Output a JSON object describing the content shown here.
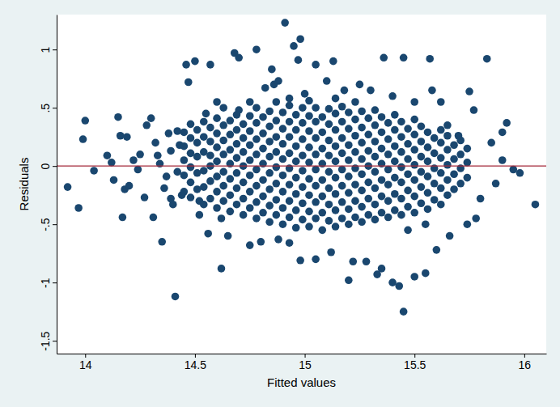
{
  "chart_data": {
    "type": "scatter",
    "xlabel": "Fitted values",
    "ylabel": "Residuals",
    "marker": "circle",
    "color": "#1a476f",
    "grid": false,
    "hline": 0,
    "xlim": [
      13.87,
      16.1
    ],
    "xticks": [
      14,
      14.5,
      15,
      15.5,
      16
    ],
    "ylim": [
      -1.61,
      1.3
    ],
    "yticks": [
      {
        "value": -1.5,
        "label": "-1.5"
      },
      {
        "value": -1,
        "label": "-1"
      },
      {
        "value": -0.5,
        "label": "-.5"
      },
      0,
      {
        "value": 0.5,
        "label": ".5"
      },
      1
    ],
    "x": [
      13.92,
      13.97,
      13.99,
      14.0,
      14.04,
      14.1,
      14.12,
      14.13,
      14.15,
      14.16,
      14.17,
      14.19,
      14.18,
      14.2,
      14.22,
      14.24,
      14.25,
      14.27,
      14.28,
      14.3,
      14.31,
      14.32,
      14.34,
      14.35,
      14.37,
      14.38,
      14.4,
      14.41,
      14.43,
      14.44,
      14.46,
      14.47,
      14.5,
      14.52,
      14.55,
      14.56,
      14.57,
      14.62,
      14.68,
      14.7,
      14.78,
      14.82,
      14.85,
      14.91,
      14.95,
      14.97,
      14.98,
      15.05,
      15.13,
      15.36,
      15.45,
      15.57,
      15.75,
      15.83,
      15.77,
      15.9,
      15.92,
      15.95,
      15.98,
      16.05,
      15.9,
      15.87,
      15.85,
      15.8,
      15.78,
      15.74,
      15.7,
      15.66,
      15.6,
      15.55,
      15.5,
      15.45,
      15.43,
      15.4,
      15.35,
      15.33,
      15.28,
      15.22,
      15.2,
      15.12,
      15.05,
      14.98,
      14.93,
      14.88,
      14.8,
      14.75,
      14.65,
      15.65,
      15.62,
      15.58,
      15.5,
      15.4,
      15.3,
      15.25,
      15.18,
      15.1,
      15.0,
      14.93,
      14.88,
      14.86,
      14.75,
      14.7,
      14.63,
      14.6,
      14.52,
      14.62,
      15.55,
      15.47,
      14.33,
      14.36,
      14.39,
      14.42,
      14.42,
      14.39,
      14.45,
      14.45,
      14.45,
      14.45,
      14.45,
      14.48,
      14.48,
      14.48,
      14.48,
      14.48,
      14.48,
      14.51,
      14.51,
      14.51,
      14.51,
      14.51,
      14.54,
      14.54,
      14.54,
      14.54,
      14.54,
      14.54,
      14.57,
      14.57,
      14.57,
      14.57,
      14.57,
      14.57,
      14.6,
      14.6,
      14.6,
      14.6,
      14.6,
      14.6,
      14.6,
      14.63,
      14.63,
      14.63,
      14.63,
      14.63,
      14.63,
      14.66,
      14.66,
      14.66,
      14.66,
      14.66,
      14.66,
      14.66,
      14.69,
      14.69,
      14.69,
      14.69,
      14.69,
      14.69,
      14.69,
      14.72,
      14.72,
      14.72,
      14.72,
      14.72,
      14.72,
      14.72,
      14.75,
      14.75,
      14.75,
      14.75,
      14.75,
      14.75,
      14.75,
      14.78,
      14.78,
      14.78,
      14.78,
      14.78,
      14.78,
      14.78,
      14.78,
      14.81,
      14.81,
      14.81,
      14.81,
      14.81,
      14.81,
      14.81,
      14.84,
      14.84,
      14.84,
      14.84,
      14.84,
      14.84,
      14.84,
      14.84,
      14.87,
      14.87,
      14.87,
      14.87,
      14.87,
      14.87,
      14.87,
      14.87,
      14.9,
      14.9,
      14.9,
      14.9,
      14.9,
      14.9,
      14.9,
      14.9,
      14.93,
      14.93,
      14.93,
      14.93,
      14.93,
      14.93,
      14.93,
      14.93,
      14.96,
      14.96,
      14.96,
      14.96,
      14.96,
      14.96,
      14.96,
      14.96,
      14.99,
      14.99,
      14.99,
      14.99,
      14.99,
      14.99,
      14.99,
      14.99,
      15.02,
      15.02,
      15.02,
      15.02,
      15.02,
      15.02,
      15.02,
      15.02,
      15.02,
      15.05,
      15.05,
      15.05,
      15.05,
      15.05,
      15.05,
      15.05,
      15.05,
      15.08,
      15.08,
      15.08,
      15.08,
      15.08,
      15.08,
      15.08,
      15.08,
      15.11,
      15.11,
      15.11,
      15.11,
      15.11,
      15.11,
      15.11,
      15.11,
      15.14,
      15.14,
      15.14,
      15.14,
      15.14,
      15.14,
      15.14,
      15.14,
      15.14,
      15.17,
      15.17,
      15.17,
      15.17,
      15.17,
      15.17,
      15.17,
      15.17,
      15.2,
      15.2,
      15.2,
      15.2,
      15.2,
      15.2,
      15.2,
      15.2,
      15.23,
      15.23,
      15.23,
      15.23,
      15.23,
      15.23,
      15.23,
      15.23,
      15.26,
      15.26,
      15.26,
      15.26,
      15.26,
      15.26,
      15.26,
      15.26,
      15.29,
      15.29,
      15.29,
      15.29,
      15.29,
      15.29,
      15.29,
      15.32,
      15.32,
      15.32,
      15.32,
      15.32,
      15.32,
      15.32,
      15.32,
      15.35,
      15.35,
      15.35,
      15.35,
      15.35,
      15.35,
      15.35,
      15.38,
      15.38,
      15.38,
      15.38,
      15.38,
      15.38,
      15.38,
      15.41,
      15.41,
      15.41,
      15.41,
      15.41,
      15.41,
      15.41,
      15.44,
      15.44,
      15.44,
      15.44,
      15.44,
      15.44,
      15.44,
      15.47,
      15.47,
      15.47,
      15.47,
      15.47,
      15.47,
      15.5,
      15.5,
      15.5,
      15.5,
      15.5,
      15.5,
      15.5,
      15.53,
      15.53,
      15.53,
      15.53,
      15.53,
      15.53,
      15.56,
      15.56,
      15.56,
      15.56,
      15.56,
      15.56,
      15.59,
      15.59,
      15.59,
      15.59,
      15.59,
      15.62,
      15.62,
      15.62,
      15.62,
      15.62,
      15.62,
      15.65,
      15.65,
      15.65,
      15.65,
      15.65,
      15.68,
      15.68,
      15.68,
      15.68,
      15.71,
      15.71,
      15.71,
      15.71,
      15.74,
      15.74,
      15.74
    ],
    "values": [
      -0.18,
      -0.36,
      0.23,
      0.39,
      -0.04,
      0.09,
      0.03,
      -0.12,
      0.42,
      0.26,
      -0.44,
      0.25,
      -0.2,
      -0.17,
      0.05,
      -0.03,
      0.1,
      -0.27,
      0.35,
      0.41,
      -0.44,
      0.2,
      0.02,
      -0.65,
      -0.09,
      0.28,
      -0.33,
      -1.12,
      0.18,
      -0.25,
      0.87,
      0.72,
      0.9,
      -0.42,
      0.45,
      -0.58,
      0.87,
      -0.88,
      0.97,
      0.93,
      1.0,
      0.67,
      0.83,
      1.23,
      1.03,
      0.91,
      1.09,
      0.87,
      0.9,
      0.93,
      0.93,
      0.92,
      0.64,
      0.92,
      0.48,
      0.29,
      0.37,
      -0.03,
      -0.06,
      -0.33,
      0.05,
      -0.15,
      0.2,
      -0.28,
      -0.45,
      -0.5,
      0.26,
      -0.6,
      -0.72,
      -0.92,
      -0.95,
      -1.25,
      -1.03,
      -1.0,
      -0.88,
      -0.93,
      -0.82,
      -0.82,
      -0.98,
      -0.74,
      -0.8,
      -0.81,
      -0.66,
      -0.63,
      -0.65,
      -0.68,
      -0.6,
      0.35,
      0.55,
      0.65,
      0.55,
      0.6,
      0.65,
      0.7,
      0.65,
      0.73,
      0.62,
      0.58,
      0.73,
      0.7,
      0.55,
      0.48,
      0.5,
      0.55,
      -0.3,
      -0.45,
      -0.5,
      -0.55,
      0.09,
      -0.19,
      0.13,
      -0.05,
      0.3,
      -0.28,
      -0.22,
      -0.08,
      0.05,
      0.17,
      0.29,
      -0.27,
      -0.14,
      -0.01,
      0.11,
      0.24,
      0.36,
      -0.2,
      -0.06,
      0.08,
      0.2,
      0.31,
      -0.33,
      -0.18,
      -0.04,
      0.12,
      0.25,
      0.38,
      -0.28,
      -0.13,
      0.0,
      0.09,
      0.21,
      0.33,
      -0.36,
      -0.22,
      -0.09,
      0.04,
      0.16,
      0.28,
      0.41,
      -0.3,
      -0.17,
      -0.05,
      0.1,
      0.22,
      0.35,
      -0.39,
      -0.25,
      -0.11,
      0.02,
      0.14,
      0.27,
      0.39,
      -0.33,
      -0.19,
      -0.06,
      0.07,
      0.19,
      0.31,
      0.44,
      -0.42,
      -0.28,
      -0.14,
      0.0,
      0.12,
      0.24,
      0.36,
      -0.36,
      -0.22,
      -0.08,
      0.05,
      0.18,
      0.3,
      0.43,
      -0.45,
      -0.31,
      -0.17,
      -0.03,
      0.1,
      0.23,
      0.37,
      0.5,
      -0.4,
      -0.26,
      -0.12,
      0.02,
      0.15,
      0.28,
      0.42,
      -0.48,
      -0.34,
      -0.2,
      -0.06,
      0.08,
      0.21,
      0.34,
      0.47,
      -0.42,
      -0.29,
      -0.15,
      -0.01,
      0.12,
      0.25,
      0.39,
      0.55,
      -0.5,
      -0.36,
      -0.22,
      -0.08,
      0.06,
      0.19,
      0.32,
      0.46,
      -0.44,
      -0.3,
      -0.16,
      -0.02,
      0.11,
      0.25,
      0.38,
      0.52,
      -0.53,
      -0.38,
      -0.24,
      -0.1,
      0.04,
      0.17,
      0.31,
      0.44,
      -0.46,
      -0.32,
      -0.18,
      -0.04,
      0.09,
      0.23,
      0.37,
      0.5,
      -0.52,
      -0.39,
      -0.25,
      -0.11,
      0.03,
      0.16,
      0.3,
      0.43,
      0.56,
      -0.45,
      -0.31,
      -0.17,
      -0.03,
      0.1,
      0.24,
      0.38,
      0.5,
      -0.55,
      -0.4,
      -0.26,
      -0.12,
      0.02,
      0.15,
      0.29,
      0.42,
      -0.47,
      -0.33,
      -0.19,
      -0.05,
      0.09,
      0.22,
      0.36,
      0.49,
      -0.52,
      -0.38,
      -0.24,
      -0.1,
      0.04,
      0.17,
      0.31,
      0.45,
      0.58,
      -0.45,
      -0.31,
      -0.17,
      -0.03,
      0.11,
      0.24,
      0.38,
      0.51,
      -0.5,
      -0.37,
      -0.23,
      -0.09,
      0.05,
      0.18,
      0.32,
      0.46,
      -0.44,
      -0.3,
      -0.16,
      -0.02,
      0.12,
      0.26,
      0.4,
      0.55,
      -0.48,
      -0.35,
      -0.21,
      -0.07,
      0.06,
      0.2,
      0.33,
      0.47,
      -0.42,
      -0.28,
      -0.14,
      0.0,
      0.13,
      0.27,
      0.41,
      -0.46,
      -0.33,
      -0.19,
      -0.05,
      0.08,
      0.21,
      0.35,
      0.48,
      -0.4,
      -0.26,
      -0.12,
      0.02,
      0.15,
      0.29,
      0.42,
      -0.44,
      -0.3,
      -0.16,
      -0.03,
      0.1,
      0.23,
      0.37,
      -0.38,
      -0.24,
      -0.1,
      0.04,
      0.17,
      0.31,
      0.44,
      -0.42,
      -0.28,
      -0.14,
      -0.01,
      0.12,
      0.25,
      0.38,
      -0.35,
      -0.21,
      -0.07,
      0.06,
      0.19,
      0.32,
      -0.4,
      -0.26,
      -0.12,
      0.01,
      0.14,
      0.27,
      0.4,
      -0.32,
      -0.18,
      -0.05,
      0.08,
      0.21,
      0.34,
      -0.37,
      -0.23,
      -0.09,
      0.04,
      0.16,
      0.29,
      -0.29,
      -0.15,
      -0.02,
      0.11,
      0.24,
      -0.33,
      -0.19,
      -0.06,
      0.07,
      0.2,
      0.31,
      -0.25,
      -0.12,
      0.01,
      0.14,
      0.26,
      -0.2,
      -0.07,
      0.06,
      0.18,
      -0.15,
      -0.02,
      0.1,
      0.22,
      -0.1,
      0.03,
      0.15
    ]
  }
}
